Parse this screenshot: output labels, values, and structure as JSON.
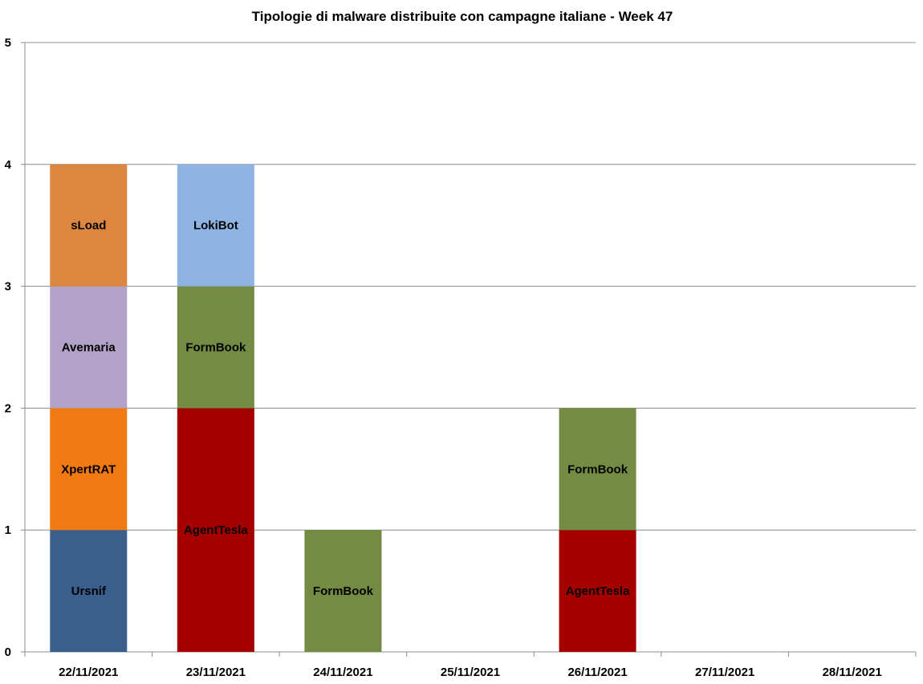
{
  "chart_data": {
    "type": "bar",
    "stacked": true,
    "title": "Tipologie  di malware distribuite con campagne italiane - Week 47",
    "xlabel": "",
    "ylabel": "",
    "ylim": [
      0,
      5
    ],
    "yticks": [
      "0",
      "1",
      "2",
      "3",
      "4",
      "5"
    ],
    "grid": true,
    "categories": [
      "22/11/2021",
      "23/11/2021",
      "24/11/2021",
      "25/11/2021",
      "26/11/2021",
      "27/11/2021",
      "28/11/2021"
    ],
    "stacks": [
      [
        {
          "label": "Ursnif",
          "value": 1
        },
        {
          "label": "XpertRAT",
          "value": 1
        },
        {
          "label": "Avemaria",
          "value": 1
        },
        {
          "label": "sLoad",
          "value": 1
        }
      ],
      [
        {
          "label": "AgentTesla",
          "value": 2
        },
        {
          "label": "FormBook",
          "value": 1
        },
        {
          "label": "LokiBot",
          "value": 1
        }
      ],
      [
        {
          "label": "FormBook",
          "value": 1
        }
      ],
      [],
      [
        {
          "label": "AgentTesla",
          "value": 1
        },
        {
          "label": "FormBook",
          "value": 1
        }
      ],
      [],
      []
    ],
    "colors": {
      "Ursnif": "#3b5f8d",
      "XpertRAT": "#f27a13",
      "Avemaria": "#b2a2c7",
      "sLoad": "#dd8640",
      "AgentTesla": "#a40000",
      "FormBook": "#738b42",
      "LokiBot": "#8eb4e3"
    }
  }
}
